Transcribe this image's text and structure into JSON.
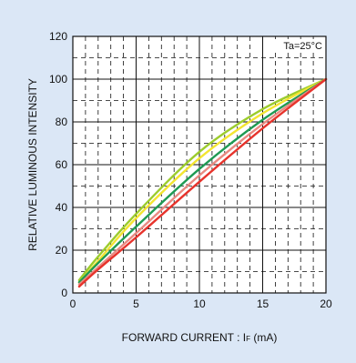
{
  "chart_data": {
    "type": "line",
    "title": "",
    "xlabel_main": "FORWARD  CURRENT : I",
    "xlabel_sub": "F",
    "xlabel_unit": "  (mA)",
    "ylabel": "RELATIVE  LUMINOUS  INTENSITY",
    "annotation": "Ta=25°C",
    "xlim": [
      0,
      20
    ],
    "ylim": [
      0,
      120
    ],
    "x_ticks": [
      0,
      5,
      10,
      15,
      20
    ],
    "y_ticks": [
      0,
      20,
      40,
      60,
      80,
      100,
      120
    ],
    "x_minor_step": 1,
    "y_minor_step": 10,
    "grid": true,
    "series": [
      {
        "color": "#9ccc2c",
        "x": [
          0.5,
          2,
          5,
          10,
          15,
          20
        ],
        "y": [
          6,
          17,
          37,
          66,
          86,
          100
        ]
      },
      {
        "color": "#f3e531",
        "x": [
          0.5,
          2,
          5,
          10,
          15,
          20
        ],
        "y": [
          5,
          15,
          35,
          63,
          84,
          100
        ]
      },
      {
        "color": "#1f9a53",
        "x": [
          0.5,
          2,
          5,
          10,
          15,
          20
        ],
        "y": [
          5,
          14,
          31,
          58,
          81,
          100
        ]
      },
      {
        "color": "#e98a82",
        "x": [
          0.5,
          2,
          5,
          10,
          15,
          20
        ],
        "y": [
          4,
          12,
          28,
          55,
          79,
          100
        ]
      },
      {
        "color": "#e7332c",
        "x": [
          0.5,
          2,
          5,
          10,
          15,
          20
        ],
        "y": [
          3,
          11,
          26,
          52,
          77,
          100
        ]
      }
    ]
  }
}
